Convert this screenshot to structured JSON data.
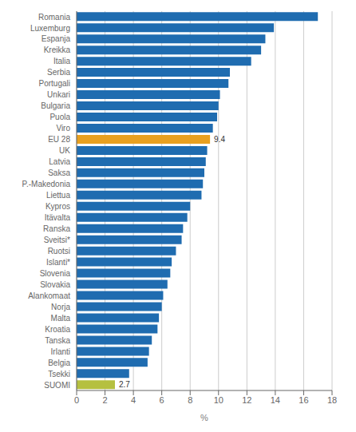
{
  "chart_data": {
    "type": "bar",
    "orientation": "horizontal",
    "categories": [
      "Romania",
      "Luxemburg",
      "Espanja",
      "Kreikka",
      "Italia",
      "Serbia",
      "Portugali",
      "Unkari",
      "Bulgaria",
      "Puola",
      "Viro",
      "EU 28",
      "UK",
      "Latvia",
      "Saksa",
      "P.-Makedonia",
      "Liettua",
      "Kypros",
      "Itävalta",
      "Ranska",
      "Sveitsi*",
      "Ruotsi",
      "Islanti*",
      "Slovenia",
      "Slovakia",
      "Alankomaat",
      "Norja",
      "Malta",
      "Kroatia",
      "Tanska",
      "Irlanti",
      "Belgia",
      "Tsekki",
      "SUOMI"
    ],
    "values": [
      17.0,
      13.9,
      13.3,
      13.0,
      12.3,
      10.8,
      10.7,
      10.1,
      10.0,
      9.9,
      9.6,
      9.4,
      9.2,
      9.1,
      9.0,
      8.9,
      8.8,
      8.0,
      7.8,
      7.5,
      7.4,
      7.0,
      6.7,
      6.6,
      6.4,
      6.1,
      6.0,
      5.8,
      5.7,
      5.3,
      5.1,
      5.0,
      3.7,
      2.7
    ],
    "colors": [
      "#1f6cb0",
      "#1f6cb0",
      "#1f6cb0",
      "#1f6cb0",
      "#1f6cb0",
      "#1f6cb0",
      "#1f6cb0",
      "#1f6cb0",
      "#1f6cb0",
      "#1f6cb0",
      "#1f6cb0",
      "#e8a020",
      "#1f6cb0",
      "#1f6cb0",
      "#1f6cb0",
      "#1f6cb0",
      "#1f6cb0",
      "#1f6cb0",
      "#1f6cb0",
      "#1f6cb0",
      "#1f6cb0",
      "#1f6cb0",
      "#1f6cb0",
      "#1f6cb0",
      "#1f6cb0",
      "#1f6cb0",
      "#1f6cb0",
      "#1f6cb0",
      "#1f6cb0",
      "#1f6cb0",
      "#1f6cb0",
      "#1f6cb0",
      "#1f6cb0",
      "#b5c040"
    ],
    "annotations": [
      {
        "category": "EU 28",
        "text": "9.4"
      },
      {
        "category": "SUOMI",
        "text": "2.7"
      }
    ],
    "xlabel": "%",
    "xlim": [
      0,
      18
    ],
    "xticks": [
      0,
      2,
      4,
      6,
      8,
      10,
      12,
      14,
      16,
      18
    ],
    "grid": true
  }
}
